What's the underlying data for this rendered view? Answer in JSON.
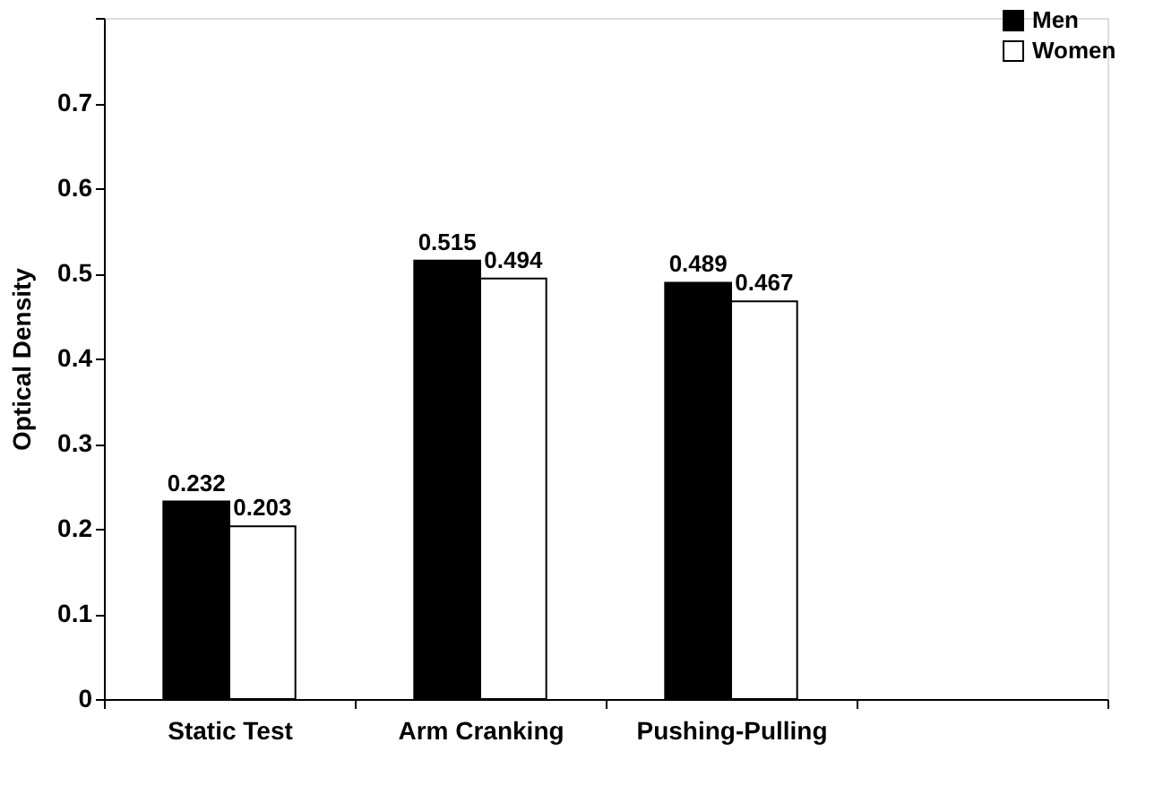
{
  "chart_data": {
    "type": "bar",
    "ylabel": "Optical Density",
    "categories": [
      "Static Test",
      "Arm Cranking",
      "Pushing-Pulling",
      null
    ],
    "series": [
      {
        "name": "Men",
        "color": "#000000",
        "values": [
          0.232,
          0.515,
          0.489,
          null
        ]
      },
      {
        "name": "Women",
        "color": "#ffffff",
        "values": [
          0.203,
          0.494,
          0.467,
          null
        ]
      }
    ],
    "ylim": [
      0,
      0.8
    ],
    "yticks": [
      0,
      0.1,
      0.2,
      0.3,
      0.4,
      0.5,
      0.6,
      0.7,
      {
        "value": 0.8,
        "label": null
      }
    ],
    "data_labels": true,
    "grid": false,
    "legend": "top right"
  }
}
